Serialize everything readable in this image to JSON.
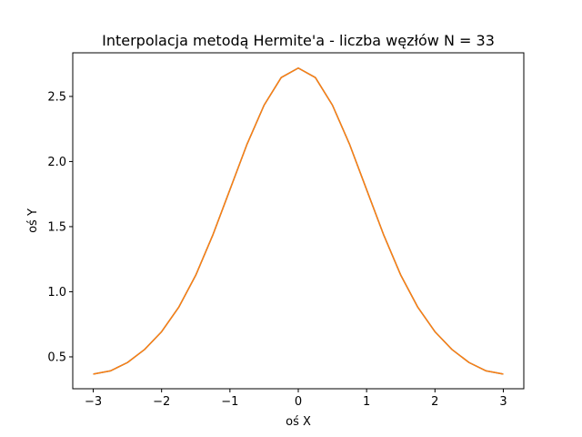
{
  "chart_data": {
    "type": "line",
    "title": "Interpolacja metodą Hermite'a - liczba węzłów N = 33",
    "xlabel": "oś X",
    "ylabel": "oś Y",
    "xlim": [
      -3.3,
      3.3
    ],
    "ylim": [
      0.255,
      2.835
    ],
    "x_ticks": [
      -3,
      -2,
      -1,
      0,
      1,
      2,
      3
    ],
    "x_tick_labels": [
      "−3",
      "−2",
      "−1",
      "0",
      "1",
      "2",
      "3"
    ],
    "y_ticks": [
      0.5,
      1.0,
      1.5,
      2.0,
      2.5
    ],
    "y_tick_labels": [
      "0.5",
      "1.0",
      "1.5",
      "2.0",
      "2.5"
    ],
    "grid": false,
    "legend": "none",
    "series": [
      {
        "color": "#1f77b4",
        "x": [
          -3.0,
          -2.75,
          -2.5,
          -2.25,
          -2.0,
          -1.75,
          -1.5,
          -1.25,
          -1.0,
          -0.75,
          -0.5,
          -0.25,
          0.0,
          0.25,
          0.5,
          0.75,
          1.0,
          1.25,
          1.5,
          1.75,
          2.0,
          2.25,
          2.5,
          2.75,
          3.0
        ],
        "y": [
          0.368,
          0.392,
          0.456,
          0.556,
          0.693,
          0.88,
          1.127,
          1.436,
          1.784,
          2.133,
          2.433,
          2.645,
          2.718,
          2.645,
          2.433,
          2.133,
          1.784,
          1.436,
          1.127,
          0.88,
          0.693,
          0.556,
          0.456,
          0.392,
          0.368
        ]
      },
      {
        "color": "#ff7f0e",
        "x": [
          -3.0,
          -2.75,
          -2.5,
          -2.25,
          -2.0,
          -1.75,
          -1.5,
          -1.25,
          -1.0,
          -0.75,
          -0.5,
          -0.25,
          0.0,
          0.25,
          0.5,
          0.75,
          1.0,
          1.25,
          1.5,
          1.75,
          2.0,
          2.25,
          2.5,
          2.75,
          3.0
        ],
        "y": [
          0.368,
          0.392,
          0.456,
          0.556,
          0.693,
          0.88,
          1.127,
          1.436,
          1.784,
          2.133,
          2.433,
          2.645,
          2.718,
          2.645,
          2.433,
          2.133,
          1.784,
          1.436,
          1.127,
          0.88,
          0.693,
          0.556,
          0.456,
          0.392,
          0.368
        ]
      }
    ]
  }
}
